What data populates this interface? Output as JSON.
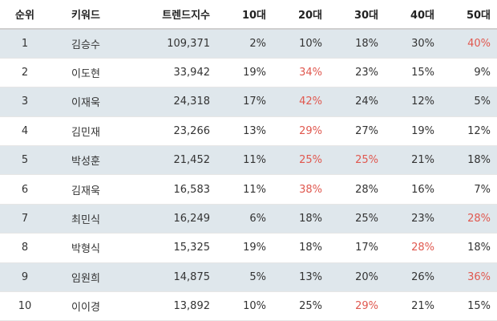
{
  "headers": {
    "rank": "순위",
    "keyword": "키워드",
    "trend_index": "트렌드지수",
    "age10": "10대",
    "age20": "20대",
    "age30": "30대",
    "age40": "40대",
    "age50": "50대"
  },
  "highlight_color": "#e0584f",
  "row_shade_color": "#dfe7ec",
  "rows": [
    {
      "rank": "1",
      "keyword": "김승수",
      "index": "109,371",
      "age10": "2%",
      "age20": "10%",
      "age30": "18%",
      "age40": "30%",
      "age50": "40%",
      "highlight": "age50"
    },
    {
      "rank": "2",
      "keyword": "이도현",
      "index": "33,942",
      "age10": "19%",
      "age20": "34%",
      "age30": "23%",
      "age40": "15%",
      "age50": "9%",
      "highlight": "age20"
    },
    {
      "rank": "3",
      "keyword": "이재욱",
      "index": "24,318",
      "age10": "17%",
      "age20": "42%",
      "age30": "24%",
      "age40": "12%",
      "age50": "5%",
      "highlight": "age20"
    },
    {
      "rank": "4",
      "keyword": "김민재",
      "index": "23,266",
      "age10": "13%",
      "age20": "29%",
      "age30": "27%",
      "age40": "19%",
      "age50": "12%",
      "highlight": "age20"
    },
    {
      "rank": "5",
      "keyword": "박성훈",
      "index": "21,452",
      "age10": "11%",
      "age20": "25%",
      "age30": "25%",
      "age40": "21%",
      "age50": "18%",
      "highlight": "age20,age30"
    },
    {
      "rank": "6",
      "keyword": "김재욱",
      "index": "16,583",
      "age10": "11%",
      "age20": "38%",
      "age30": "28%",
      "age40": "16%",
      "age50": "7%",
      "highlight": "age20"
    },
    {
      "rank": "7",
      "keyword": "최민식",
      "index": "16,249",
      "age10": "6%",
      "age20": "18%",
      "age30": "25%",
      "age40": "23%",
      "age50": "28%",
      "highlight": "age50"
    },
    {
      "rank": "8",
      "keyword": "박형식",
      "index": "15,325",
      "age10": "19%",
      "age20": "18%",
      "age30": "17%",
      "age40": "28%",
      "age50": "18%",
      "highlight": "age40"
    },
    {
      "rank": "9",
      "keyword": "임원희",
      "index": "14,875",
      "age10": "5%",
      "age20": "13%",
      "age30": "20%",
      "age40": "26%",
      "age50": "36%",
      "highlight": "age50"
    },
    {
      "rank": "10",
      "keyword": "이이경",
      "index": "13,892",
      "age10": "10%",
      "age20": "25%",
      "age30": "29%",
      "age40": "21%",
      "age50": "15%",
      "highlight": "age30"
    }
  ]
}
